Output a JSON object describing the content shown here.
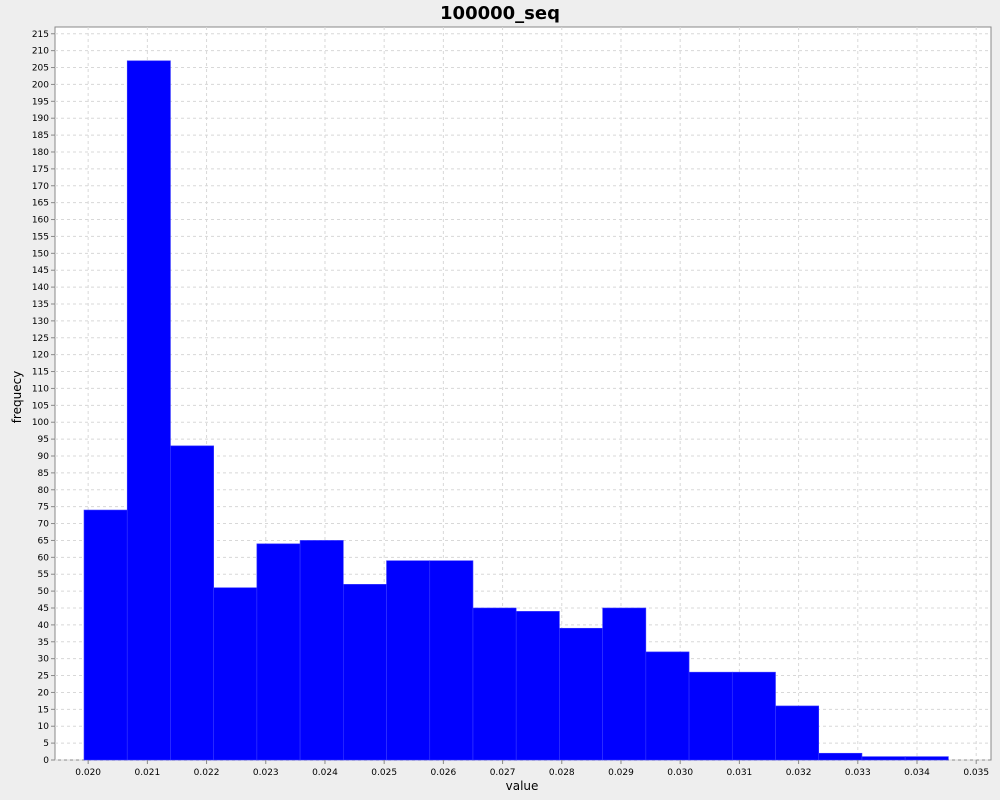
{
  "chart_data": {
    "type": "bar",
    "title": "100000_seq",
    "xlabel": "value",
    "ylabel": "frequecy",
    "bin_edges": [
      0.01993,
      0.02066,
      0.02139,
      0.02212,
      0.02285,
      0.02358,
      0.02431,
      0.02504,
      0.02577,
      0.0265,
      0.02723,
      0.02796,
      0.02869,
      0.02942,
      0.03015,
      0.03088,
      0.03161,
      0.03234,
      0.03307,
      0.0338,
      0.03453,
      0.03526
    ],
    "values": [
      74,
      207,
      93,
      51,
      64,
      65,
      52,
      59,
      59,
      45,
      44,
      39,
      45,
      32,
      26,
      26,
      16,
      2,
      1,
      1,
      0
    ],
    "xlim": [
      0.01944,
      0.03525
    ],
    "ylim": [
      0,
      217
    ],
    "x_ticks": [
      "0.020",
      "0.021",
      "0.022",
      "0.023",
      "0.024",
      "0.025",
      "0.026",
      "0.027",
      "0.028",
      "0.029",
      "0.030",
      "0.031",
      "0.032",
      "0.033",
      "0.034",
      "0.035"
    ],
    "y_ticks": [
      "0",
      "5",
      "10",
      "15",
      "20",
      "25",
      "30",
      "35",
      "40",
      "45",
      "50",
      "55",
      "60",
      "65",
      "70",
      "75",
      "80",
      "85",
      "90",
      "95",
      "100",
      "105",
      "110",
      "115",
      "120",
      "125",
      "130",
      "135",
      "140",
      "145",
      "150",
      "155",
      "160",
      "165",
      "170",
      "175",
      "180",
      "185",
      "190",
      "195",
      "200",
      "205",
      "210",
      "215"
    ],
    "grid": true,
    "bar_color": "#0000ff",
    "plot_background": "#ffffff",
    "page_background": "#eeeeee"
  }
}
